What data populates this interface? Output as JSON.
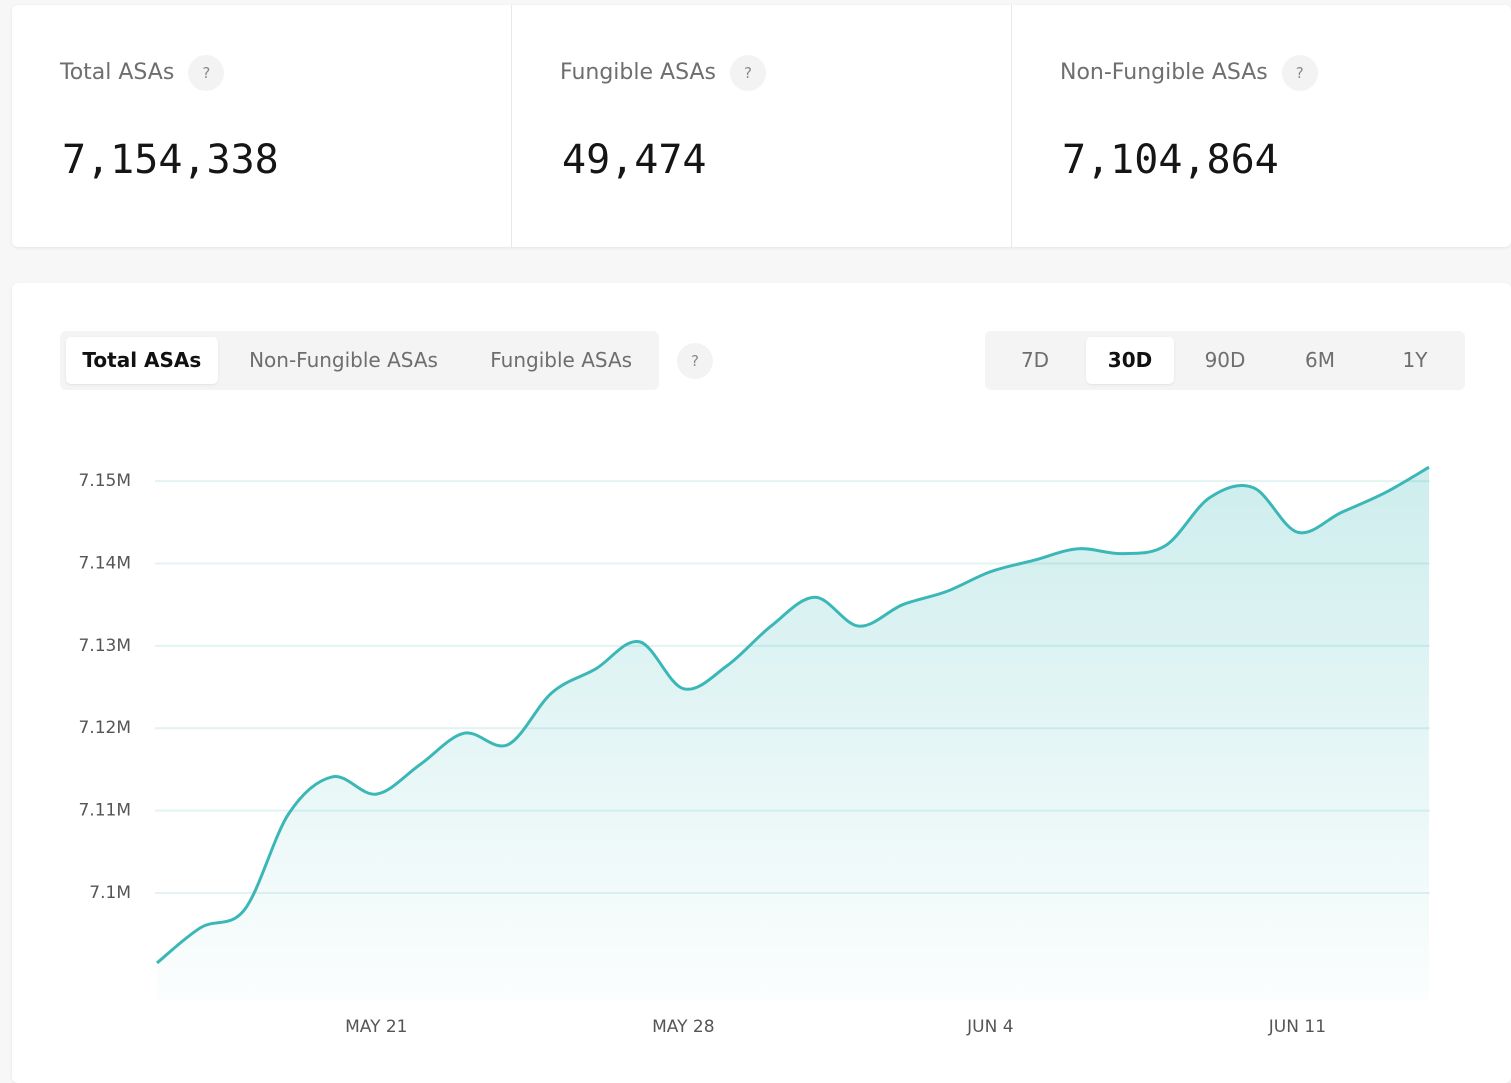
{
  "help_icon": "?",
  "stats": [
    {
      "label": "Total ASAs",
      "value": "7,154,338"
    },
    {
      "label": "Fungible ASAs",
      "value": "49,474"
    },
    {
      "label": "Non-Fungible ASAs",
      "value": "7,104,864"
    }
  ],
  "tabs": {
    "items": [
      "Total ASAs",
      "Non-Fungible ASAs",
      "Fungible ASAs"
    ],
    "active": 0
  },
  "ranges": {
    "items": [
      "7D",
      "30D",
      "90D",
      "6M",
      "1Y"
    ],
    "active": 1
  },
  "chart_data": {
    "type": "area",
    "color": "#3bb7b7",
    "grid": true,
    "x": [
      "MAY 16",
      "MAY 17",
      "MAY 18",
      "MAY 19",
      "MAY 20",
      "MAY 21",
      "MAY 22",
      "MAY 23",
      "MAY 24",
      "MAY 25",
      "MAY 26",
      "MAY 27",
      "MAY 28",
      "MAY 29",
      "MAY 30",
      "MAY 31",
      "JUN 1",
      "JUN 2",
      "JUN 3",
      "JUN 4",
      "JUN 5",
      "JUN 6",
      "JUN 7",
      "JUN 8",
      "JUN 9",
      "JUN 10",
      "JUN 11",
      "JUN 12",
      "JUN 13",
      "JUN 14"
    ],
    "values": [
      7091500,
      7095800,
      7098000,
      7109600,
      7114100,
      7112000,
      7115600,
      7119400,
      7118000,
      7124300,
      7127200,
      7130500,
      7124800,
      7127600,
      7132400,
      7135900,
      7132400,
      7135000,
      7136600,
      7139000,
      7140400,
      7141800,
      7141200,
      7142200,
      7148000,
      7149200,
      7143800,
      7146200,
      7148600,
      7151700
    ],
    "xticks": [
      "MAY 21",
      "MAY 28",
      "JUN 4",
      "JUN 11"
    ],
    "ylim": [
      7087000,
      7155000
    ],
    "yticks": [
      {
        "value": 7100000,
        "label": "7.1M"
      },
      {
        "value": 7110000,
        "label": "7.11M"
      },
      {
        "value": 7120000,
        "label": "7.12M"
      },
      {
        "value": 7130000,
        "label": "7.13M"
      },
      {
        "value": 7140000,
        "label": "7.14M"
      },
      {
        "value": 7150000,
        "label": "7.15M"
      }
    ]
  }
}
